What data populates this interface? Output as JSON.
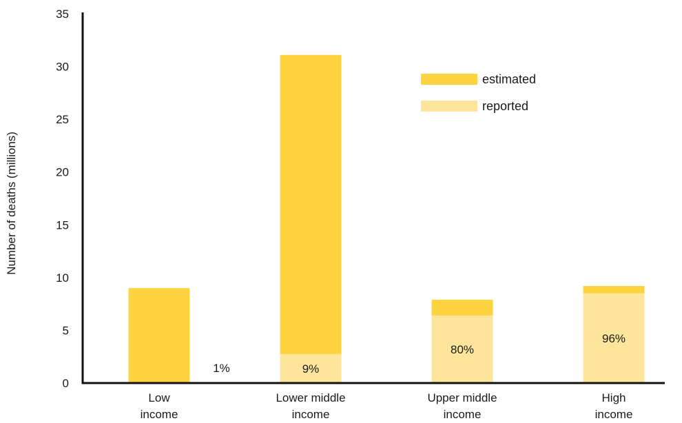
{
  "chart_data": {
    "type": "bar",
    "stacked": true,
    "title": "",
    "xlabel": "",
    "ylabel": "Number of deaths (millions)",
    "ylim": [
      0,
      35
    ],
    "yticks": [
      0,
      5,
      10,
      15,
      20,
      25,
      30,
      35
    ],
    "grid": false,
    "legend_position": "top-right",
    "categories": [
      [
        "Low",
        "income"
      ],
      [
        "Lower middle",
        "income"
      ],
      [
        "Upper middle",
        "income"
      ],
      [
        "High",
        "income"
      ]
    ],
    "series": [
      {
        "name": "estimated",
        "color": "#FDD440",
        "values": [
          9.0,
          31.1,
          7.9,
          9.2
        ]
      },
      {
        "name": "reported",
        "color": "#FDE69B",
        "values": [
          0.09,
          2.75,
          6.4,
          8.5
        ]
      }
    ],
    "data_labels": [
      "1%",
      "9%",
      "80%",
      "96%"
    ]
  }
}
